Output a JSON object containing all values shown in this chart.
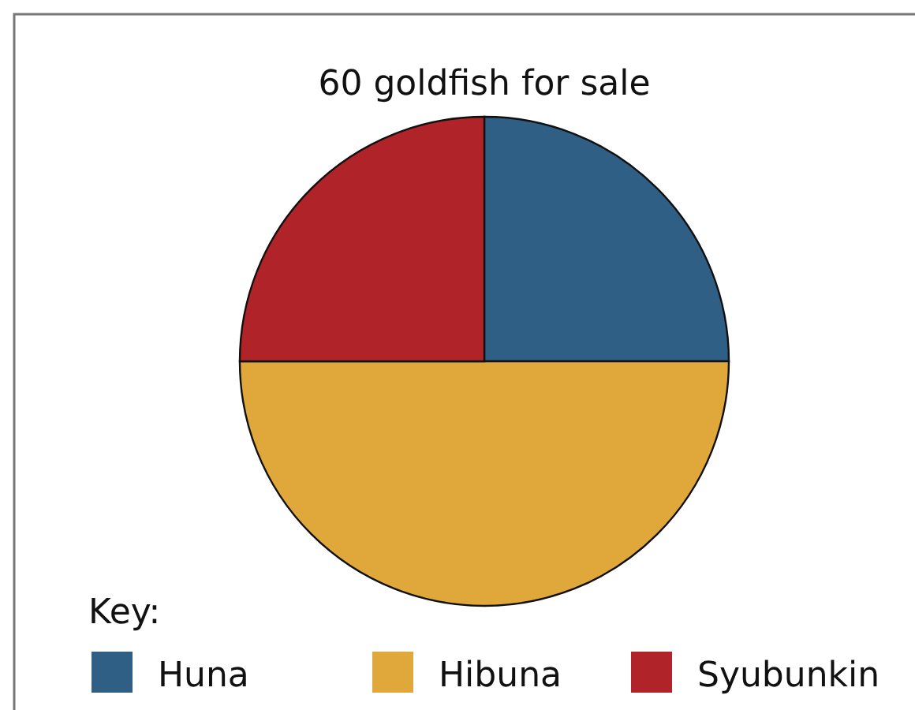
{
  "chart_data": {
    "type": "pie",
    "title": "60 goldfish for sale",
    "legend_title": "Key:",
    "categories": [
      "Huna",
      "Hibuna",
      "Syubunkin"
    ],
    "values": [
      25,
      50,
      25
    ],
    "colors": [
      "#2f5f85",
      "#e0a83a",
      "#b02328"
    ],
    "legend": "bottom left"
  }
}
